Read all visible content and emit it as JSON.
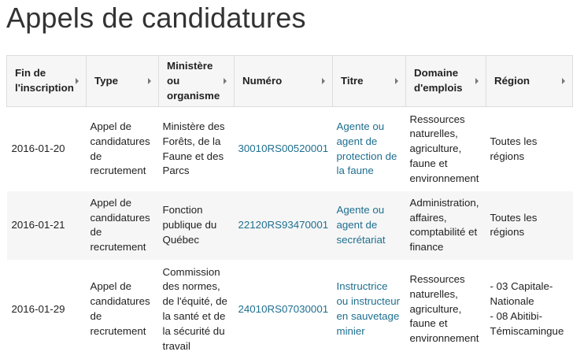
{
  "page_title": "Appels de candidatures",
  "table": {
    "headers": [
      "Fin de l'inscription",
      "Type",
      "Ministère ou organisme",
      "Numéro",
      "Titre",
      "Domaine d'emplois",
      "Région"
    ],
    "rows": [
      {
        "date": "2016-01-20",
        "type": "Appel de candidatures de recrutement",
        "ministere": "Ministère des Forêts, de la Faune et des Parcs",
        "numero": "30010RS00520001",
        "titre": "Agente ou agent de protection de la faune",
        "domaine": "Ressources naturelles, agriculture, faune et environnement",
        "region": "Toutes les régions"
      },
      {
        "date": "2016-01-21",
        "type": "Appel de candidatures de recrutement",
        "ministere": "Fonction publique du Québec",
        "numero": "22120RS93470001",
        "titre": "Agente ou agent de secrétariat",
        "domaine": "Administration, affaires, comptabilité et finance",
        "region": "Toutes les régions"
      },
      {
        "date": "2016-01-29",
        "type": "Appel de candidatures de recrutement",
        "ministere": "Commission des normes, de l'équité, de la santé et de la sécurité du travail",
        "numero": "24010RS07030001",
        "titre": "Instructrice ou instructeur en sauvetage minier",
        "domaine": "Ressources naturelles, agriculture, faune et environnement",
        "region": "- 03 Capitale-Nationale\n- 08 Abitibi-Témiscamingue"
      }
    ]
  },
  "colors": {
    "link": "#1e6f8f",
    "header_bg": "#f6f6f6"
  }
}
